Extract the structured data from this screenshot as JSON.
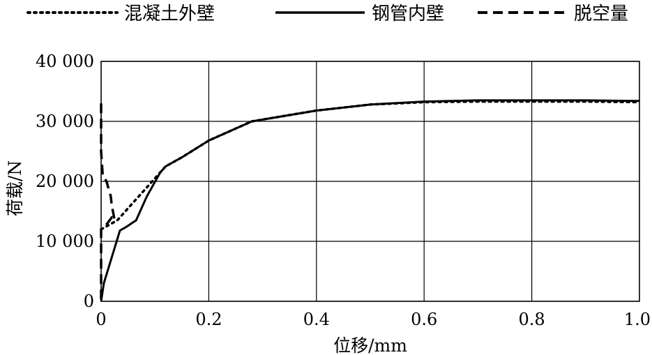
{
  "chart_data": {
    "type": "line",
    "title": "",
    "xlabel": "位移/mm",
    "ylabel": "荷载/N",
    "xlim": [
      0,
      1.0
    ],
    "ylim": [
      0,
      40000
    ],
    "x_ticks": [
      0,
      0.2,
      0.4,
      0.6,
      0.8,
      1.0
    ],
    "x_tick_labels": [
      "0",
      "0.2",
      "0.4",
      "0.6",
      "0.8",
      "1.0"
    ],
    "y_ticks": [
      0,
      10000,
      20000,
      30000,
      40000
    ],
    "y_tick_labels": [
      "0",
      "10 000",
      "20 000",
      "30 000",
      "40 000"
    ],
    "grid": true,
    "legend_position": "top",
    "series": [
      {
        "name": "混凝土外壁",
        "style": "dotted",
        "color": "#000000",
        "x": [
          0,
          0.03,
          0.06,
          0.08,
          0.1,
          0.12,
          0.15,
          0.2,
          0.28,
          0.4,
          0.5,
          0.6,
          0.7,
          0.8,
          0.9,
          1.0
        ],
        "y": [
          12000,
          13500,
          16500,
          18500,
          20500,
          22500,
          24000,
          26800,
          30000,
          31800,
          32800,
          33200,
          33300,
          33300,
          33300,
          33200
        ]
      },
      {
        "name": "钢管内壁",
        "style": "solid",
        "color": "#000000",
        "x": [
          0,
          0.005,
          0.035,
          0.045,
          0.065,
          0.085,
          0.11,
          0.12,
          0.15,
          0.2,
          0.28,
          0.4,
          0.5,
          0.6,
          0.7,
          0.8,
          0.9,
          1.0
        ],
        "y": [
          0,
          3000,
          11800,
          12300,
          13500,
          17500,
          21500,
          22500,
          24000,
          26800,
          30000,
          31800,
          32800,
          33300,
          33500,
          33500,
          33500,
          33400
        ]
      },
      {
        "name": "脱空量",
        "style": "dashed",
        "color": "#000000",
        "x": [
          0,
          0,
          0.003,
          0.01,
          0.018,
          0.02,
          0.022,
          0.025,
          0.02,
          0.01,
          0.003,
          0.0,
          0.0
        ],
        "y": [
          33000,
          25000,
          21000,
          20000,
          17500,
          15800,
          15000,
          13500,
          14000,
          12800,
          12200,
          12000,
          0
        ]
      }
    ]
  }
}
